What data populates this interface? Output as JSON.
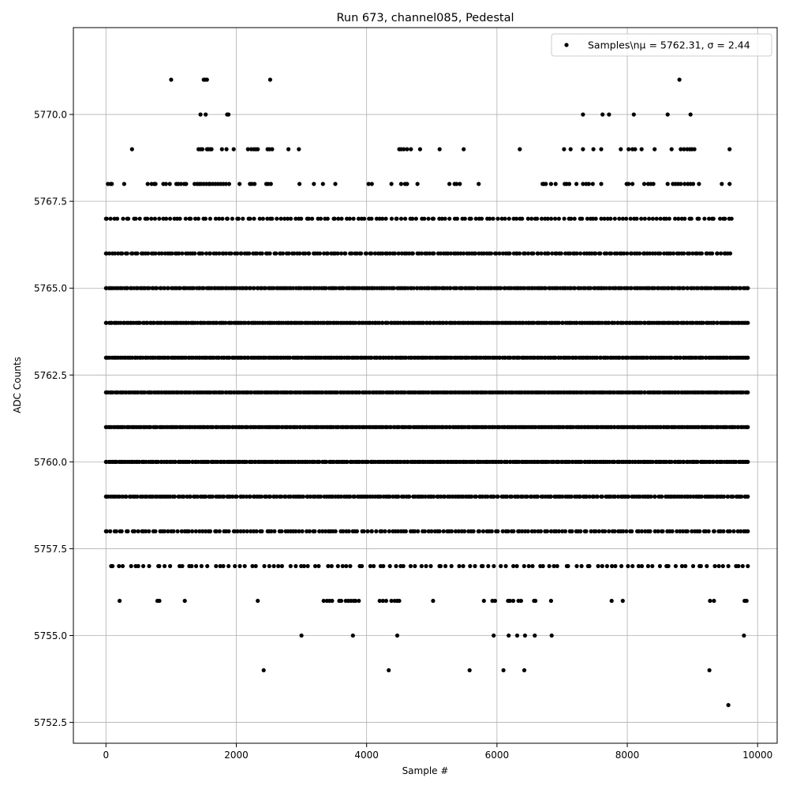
{
  "chart_data": {
    "type": "scatter",
    "title": "Run 673, channel085, Pedestal",
    "xlabel": "Sample #",
    "ylabel": "ADC Counts",
    "xlim": [
      -500,
      10300
    ],
    "ylim": [
      5751.9,
      5772.5
    ],
    "x_ticks": [
      0,
      2000,
      4000,
      6000,
      8000,
      10000
    ],
    "x_tick_labels": [
      "0",
      "2000",
      "4000",
      "6000",
      "8000",
      "10000"
    ],
    "y_ticks": [
      5752.5,
      5755.0,
      5757.5,
      5760.0,
      5762.5,
      5765.0,
      5767.5,
      5770.0
    ],
    "y_tick_labels": [
      "5752.5",
      "5755.0",
      "5757.5",
      "5760.0",
      "5762.5",
      "5765.0",
      "5767.5",
      "5770.0"
    ],
    "grid": true,
    "legend_position": "top-right",
    "series": [
      {
        "name": "Samples\\n$\\mu$ = 5762.31, $\\sigma$ = 2.44",
        "legend_label": "Samples\\nμ = 5762.31, σ = 2.44",
        "color": "#000000",
        "marker": "circle",
        "x_range": [
          0,
          9850
        ],
        "levels": [
          {
            "y": 5771,
            "x": [
              1000,
              1500,
              1520,
              1550,
              2520,
              8800
            ]
          },
          {
            "y": 5770,
            "x": [
              1450,
              1530,
              1860,
              1880,
              7320,
              7620,
              7720,
              8100,
              8620,
              8970
            ]
          },
          {
            "y": 5769,
            "x": [
              400,
              1420,
              1450,
              1480,
              1550,
              1570,
              1600,
              1620,
              1780,
              1850,
              1960,
              2180,
              2230,
              2270,
              2300,
              2330,
              2480,
              2510,
              2550,
              2800,
              2960,
              4500,
              4530,
              4570,
              4620,
              4680,
              4820,
              5120,
              5490,
              6350,
              7030,
              7130,
              7320,
              7480,
              7600,
              7900,
              8020,
              8080,
              8120,
              8220,
              8420,
              8680,
              8820,
              8870,
              8920,
              8960,
              8990,
              9030,
              9570
            ]
          },
          {
            "y": 5768,
            "x": [
              30,
              70,
              90,
              280,
              640,
              700,
              740,
              760,
              880,
              920,
              980,
              1080,
              1110,
              1150,
              1200,
              1230,
              1360,
              1400,
              1430,
              1460,
              1500,
              1540,
              1580,
              1600,
              1640,
              1680,
              1720,
              1760,
              1800,
              1840,
              1890,
              2050,
              2210,
              2240,
              2280,
              2460,
              2490,
              2530,
              2970,
              3190,
              3330,
              3520,
              4030,
              4080,
              4380,
              4530,
              4590,
              4620,
              4780,
              5270,
              5350,
              5380,
              5430,
              5720,
              6700,
              6720,
              6750,
              6830,
              6900,
              7040,
              7070,
              7110,
              7220,
              7320,
              7370,
              7410,
              7470,
              7600,
              7990,
              8020,
              8080,
              8260,
              8320,
              8360,
              8400,
              8620,
              8700,
              8740,
              8780,
              8820,
              8880,
              8930,
              8970,
              9010,
              9100,
              9450,
              9570
            ]
          },
          {
            "y": 5756,
            "x": [
              210,
              790,
              820,
              1210,
              2330,
              3340,
              3390,
              3430,
              3470,
              3580,
              3610,
              3680,
              3720,
              3760,
              3800,
              3830,
              3880,
              4200,
              4250,
              4300,
              4380,
              4430,
              4470,
              4500,
              5020,
              5800,
              5930,
              5970,
              6170,
              6200,
              6250,
              6330,
              6370,
              6570,
              6590,
              6830,
              7760,
              7930,
              9270,
              9330,
              9800,
              9830
            ]
          },
          {
            "y": 5755,
            "x": [
              3000,
              3790,
              4470,
              5950,
              6180,
              6310,
              6430,
              6580,
              6840,
              9790
            ]
          },
          {
            "y": 5754,
            "x": [
              2420,
              4340,
              5580,
              6100,
              6420,
              9260
            ]
          },
          {
            "y": 5753,
            "x": [
              9550
            ]
          }
        ],
        "bands": [
          {
            "y": 5767,
            "x_start": 0,
            "x_end": 9600,
            "count": 170,
            "seed": 11
          },
          {
            "y": 5766,
            "x_start": 0,
            "x_end": 9580,
            "count": 240,
            "seed": 23
          },
          {
            "y": 5765,
            "x_start": 0,
            "x_end": 9850,
            "count": 330,
            "seed": 37
          },
          {
            "y": 5764,
            "x_start": 0,
            "x_end": 9850,
            "count": 360,
            "seed": 41
          },
          {
            "y": 5763,
            "x_start": 0,
            "x_end": 9850,
            "count": 370,
            "seed": 53
          },
          {
            "y": 5762,
            "x_start": 0,
            "x_end": 9850,
            "count": 380,
            "seed": 67
          },
          {
            "y": 5761,
            "x_start": 0,
            "x_end": 9850,
            "count": 390,
            "seed": 71
          },
          {
            "y": 5760,
            "x_start": 0,
            "x_end": 9850,
            "count": 370,
            "seed": 83
          },
          {
            "y": 5759,
            "x_start": 0,
            "x_end": 9850,
            "count": 290,
            "seed": 97
          },
          {
            "y": 5758,
            "x_start": 0,
            "x_end": 9850,
            "count": 210,
            "seed": 101
          },
          {
            "y": 5757,
            "x_start": 80,
            "x_end": 9850,
            "count": 120,
            "seed": 113
          }
        ]
      }
    ]
  }
}
